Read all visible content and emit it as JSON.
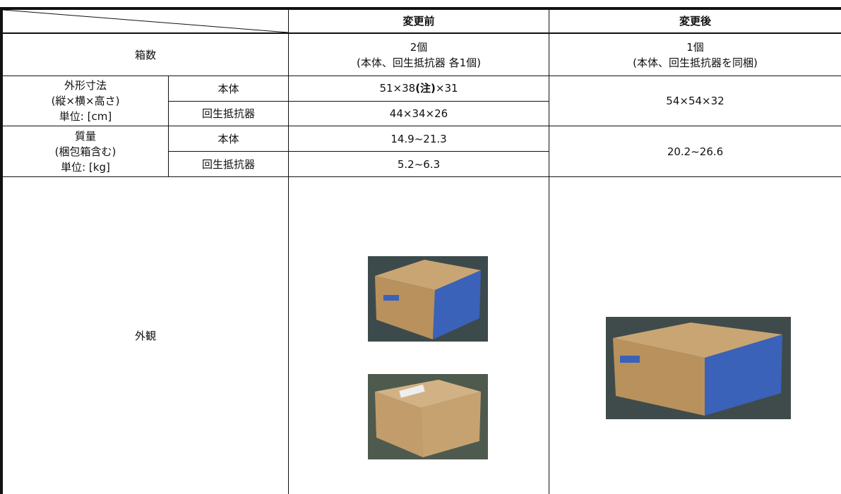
{
  "table": {
    "header": [
      "変更前",
      "変更後"
    ],
    "rows": [
      {
        "label": "箱数",
        "before": [
          "2個",
          "(本体、回生抵抗器 各1個)"
        ],
        "after": [
          "1個",
          "(本体、回生抵抗器を同梱)"
        ]
      },
      {
        "label": [
          "外形寸法",
          "(縦×横×高さ)",
          "単位: [cm]"
        ],
        "sub": [
          {
            "name": "本体",
            "before": [
              "51×38",
              "(注)",
              "×31"
            ]
          },
          {
            "name": "回生抵抗器",
            "before": "44×34×26"
          }
        ],
        "after": "54×54×32"
      },
      {
        "label": [
          "質量",
          "(梱包箱含む)",
          "単位: [kg]"
        ],
        "sub": [
          {
            "name": "本体",
            "before": "14.9~21.3"
          },
          {
            "name": "回生抵抗器",
            "before": "5.2~6.3"
          }
        ],
        "after": "20.2~26.6"
      },
      {
        "label": "外観"
      }
    ]
  }
}
